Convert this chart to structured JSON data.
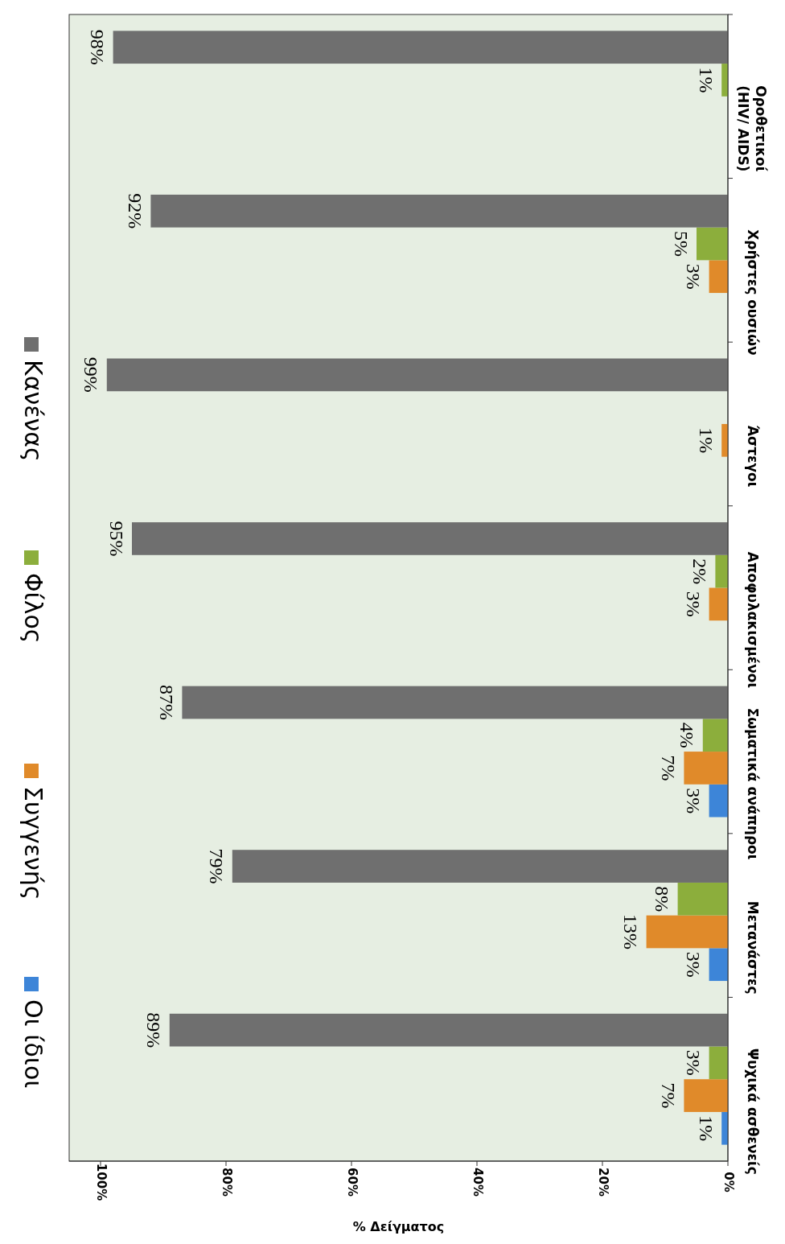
{
  "chart_data": {
    "type": "bar",
    "orientation": "horizontal",
    "xlabel": "% Δείγματος",
    "categories": [
      "Οροθετικοί (HIV/ AIDS)",
      "Χρήστες ουσιών",
      "Άστεγοι",
      "Αποφυλακισμένοι",
      "Σωματικά ανάπηροι",
      "Μετανάστες",
      "Ψυχικά ασθενείς"
    ],
    "xlim": [
      105,
      0
    ],
    "xticks": [
      {
        "value": 100,
        "label": "100%"
      },
      {
        "value": 80,
        "label": "80%"
      },
      {
        "value": 60,
        "label": "60%"
      },
      {
        "value": 40,
        "label": "40%"
      },
      {
        "value": 20,
        "label": "20%"
      },
      {
        "value": 0,
        "label": "0%"
      }
    ],
    "series": [
      {
        "name": "Οι ίδιοι",
        "color": "#3d85d8",
        "values": [
          null,
          null,
          null,
          null,
          3,
          3,
          1
        ],
        "value_labels": [
          null,
          null,
          null,
          null,
          "3%",
          "3%",
          "1%"
        ]
      },
      {
        "name": "Συγγενής",
        "color": "#e08a2a",
        "values": [
          null,
          3,
          1,
          3,
          7,
          13,
          7
        ],
        "value_labels": [
          null,
          "3%",
          "1%",
          "3%",
          "7%",
          "13%",
          "7%"
        ]
      },
      {
        "name": "Φίλος",
        "color": "#8cae3c",
        "values": [
          1,
          5,
          null,
          2,
          4,
          8,
          3
        ],
        "value_labels": [
          "1%",
          "5%",
          null,
          "2%",
          "4%",
          "8%",
          "3%"
        ]
      },
      {
        "name": "Κανένας",
        "color": "#6f6f6f",
        "values": [
          98,
          92,
          99,
          95,
          87,
          79,
          89
        ],
        "value_labels": [
          "98%",
          "92%",
          "99%",
          "95%",
          "87%",
          "79%",
          "89%"
        ]
      }
    ],
    "legend": "left",
    "grid": false
  }
}
